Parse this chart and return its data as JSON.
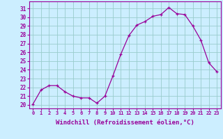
{
  "x": [
    0,
    1,
    2,
    3,
    4,
    5,
    6,
    7,
    8,
    9,
    10,
    11,
    12,
    13,
    14,
    15,
    16,
    17,
    18,
    19,
    20,
    21,
    22,
    23
  ],
  "y": [
    20.1,
    21.7,
    22.2,
    22.2,
    21.5,
    21.0,
    20.8,
    20.8,
    20.2,
    21.0,
    23.3,
    25.8,
    27.9,
    29.1,
    29.5,
    30.1,
    30.3,
    31.1,
    30.4,
    30.3,
    29.0,
    27.4,
    24.8,
    23.8
  ],
  "line_color": "#990099",
  "marker": "+",
  "background_color": "#cceeff",
  "grid_color": "#99cccc",
  "xlabel": "Windchill (Refroidissement éolien,°C)",
  "xlabel_color": "#990099",
  "ylabel_ticks": [
    20,
    21,
    22,
    23,
    24,
    25,
    26,
    27,
    28,
    29,
    30,
    31
  ],
  "xtick_labels": [
    "0",
    "1",
    "2",
    "3",
    "4",
    "5",
    "6",
    "7",
    "8",
    "9",
    "10",
    "11",
    "12",
    "13",
    "14",
    "15",
    "16",
    "17",
    "18",
    "19",
    "20",
    "21",
    "22",
    "23"
  ],
  "ylim": [
    19.6,
    31.8
  ],
  "xlim": [
    -0.5,
    23.5
  ],
  "tick_color": "#990099",
  "spine_color": "#990099",
  "markersize": 3.0,
  "linewidth": 0.9,
  "title_fontsize": 5.5,
  "xlabel_fontsize": 6.5,
  "ytick_fontsize": 5.5,
  "xtick_fontsize": 5.0
}
